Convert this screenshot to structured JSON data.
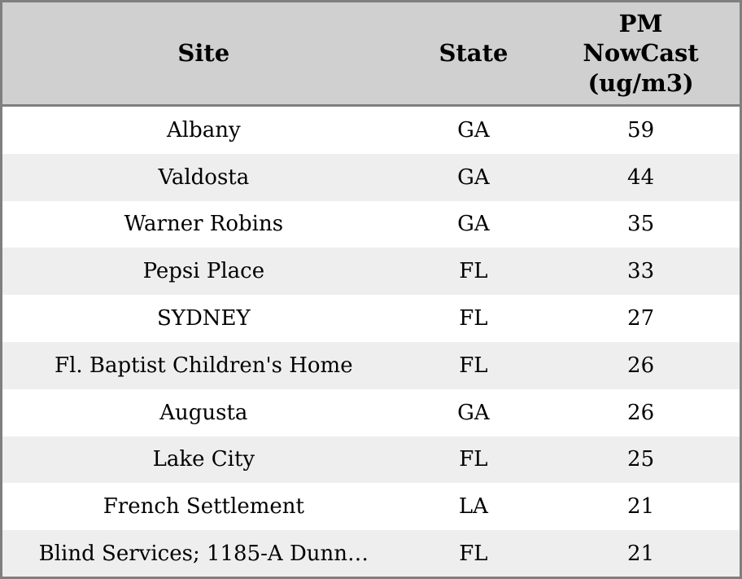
{
  "table": {
    "header": {
      "site": "Site",
      "state": "State",
      "pm": "PM NowCast (ug/m3)"
    },
    "rows": [
      {
        "site": "Albany",
        "state": "GA",
        "pm": "59"
      },
      {
        "site": "Valdosta",
        "state": "GA",
        "pm": "44"
      },
      {
        "site": "Warner Robins",
        "state": "GA",
        "pm": "35"
      },
      {
        "site": "Pepsi Place",
        "state": "FL",
        "pm": "33"
      },
      {
        "site": "SYDNEY",
        "state": "FL",
        "pm": "27"
      },
      {
        "site": "Fl. Baptist Children's Home",
        "state": "FL",
        "pm": "26"
      },
      {
        "site": "Augusta",
        "state": "GA",
        "pm": "26"
      },
      {
        "site": "Lake City",
        "state": "FL",
        "pm": "25"
      },
      {
        "site": "French Settlement",
        "state": "LA",
        "pm": "21"
      },
      {
        "site": "Blind Services; 1185-A Dunn…",
        "state": "FL",
        "pm": "21"
      }
    ],
    "colors": {
      "header_bg": "#d0d0d0",
      "row_stripe_bg": "#eeeeee",
      "row_bg": "#ffffff",
      "border": "#7f7f7f",
      "text": "#000000"
    }
  }
}
